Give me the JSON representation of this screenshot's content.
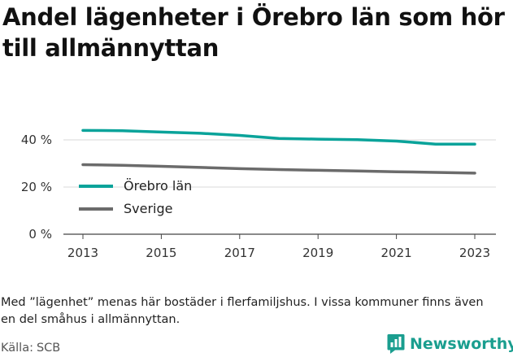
{
  "title": "Andel lägenheter i Örebro län som hör till allmännyttan",
  "note": "Med ”lägenhet” menas här bostäder i flerfamiljshus. I vissa kommuner finns även en del småhus i allmännyttan.",
  "source": {
    "label": "Källa:",
    "value": "SCB"
  },
  "brand": {
    "name": "Newsworthy",
    "icon": "newsworthy-logo-icon",
    "color": "#1a9e8f"
  },
  "chart_data": {
    "type": "line",
    "x": [
      2013,
      2014,
      2015,
      2016,
      2017,
      2018,
      2019,
      2020,
      2021,
      2022,
      2023
    ],
    "x_ticks": [
      "2013",
      "2015",
      "2017",
      "2019",
      "2021",
      "2023"
    ],
    "y_ticks": [
      "0 %",
      "20 %",
      "40 %"
    ],
    "ylim": [
      0,
      50
    ],
    "grid": true,
    "legend_placement": "left, inside plot",
    "series": [
      {
        "name": "Örebro län",
        "color": "#0aa39a",
        "values": [
          44.0,
          43.9,
          43.3,
          42.8,
          41.9,
          40.6,
          40.3,
          40.1,
          39.5,
          38.2,
          38.2
        ]
      },
      {
        "name": "Sverige",
        "color": "#6b6b6b",
        "values": [
          29.5,
          29.2,
          28.8,
          28.3,
          27.8,
          27.4,
          27.1,
          26.8,
          26.5,
          26.2,
          25.9
        ]
      }
    ]
  }
}
